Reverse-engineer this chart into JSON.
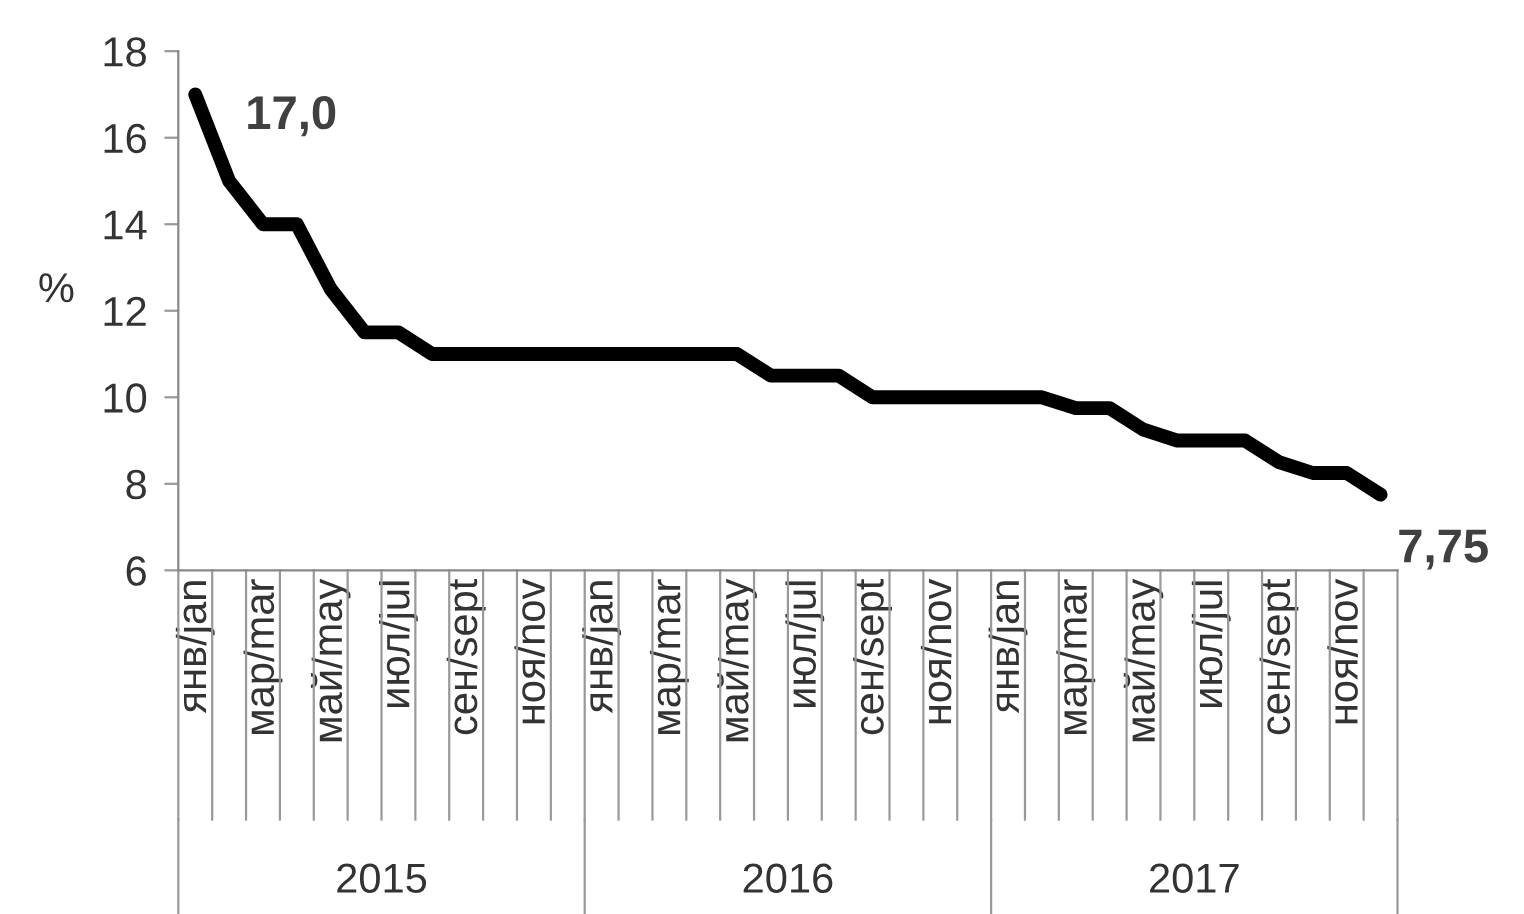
{
  "chart_data": {
    "type": "line",
    "ylabel": "%",
    "categories": [
      "янв/jan",
      null,
      "мар/mar",
      null,
      "май/may",
      null,
      "июл/jul",
      null,
      "сен/sept",
      null,
      "ноя/nov",
      null,
      "янв/jan",
      null,
      "мар/mar",
      null,
      "май/may",
      null,
      "июл/jul",
      null,
      "сен/sept",
      null,
      "ноя/nov",
      null,
      "янв/jan",
      null,
      "мар/mar",
      null,
      "май/may",
      null,
      "июл/jul",
      null,
      "сен/sept",
      null,
      "ноя/nov",
      null
    ],
    "series": [
      {
        "color": "#000000",
        "values": [
          17,
          15,
          14,
          14,
          12.5,
          11.5,
          11.5,
          11,
          11,
          11,
          11,
          11,
          11,
          11,
          11,
          11,
          11,
          10.5,
          10.5,
          10.5,
          10,
          10,
          10,
          10,
          10,
          10,
          9.75,
          9.75,
          9.25,
          9,
          9,
          9,
          8.5,
          8.25,
          8.25,
          7.75
        ],
        "value_labels": [
          "17,0",
          null,
          null,
          null,
          null,
          null,
          null,
          null,
          null,
          null,
          null,
          null,
          null,
          null,
          null,
          null,
          null,
          null,
          null,
          null,
          null,
          null,
          null,
          null,
          null,
          null,
          null,
          null,
          null,
          null,
          null,
          null,
          null,
          null,
          null,
          "7,75"
        ]
      }
    ],
    "annotations": [
      "2015",
      "2016",
      "2017"
    ],
    "ylim": [
      6,
      18
    ],
    "yticks": [
      6,
      8,
      10,
      12,
      14,
      16,
      18
    ],
    "grid": false,
    "marker": "none",
    "line_style": "solid"
  }
}
